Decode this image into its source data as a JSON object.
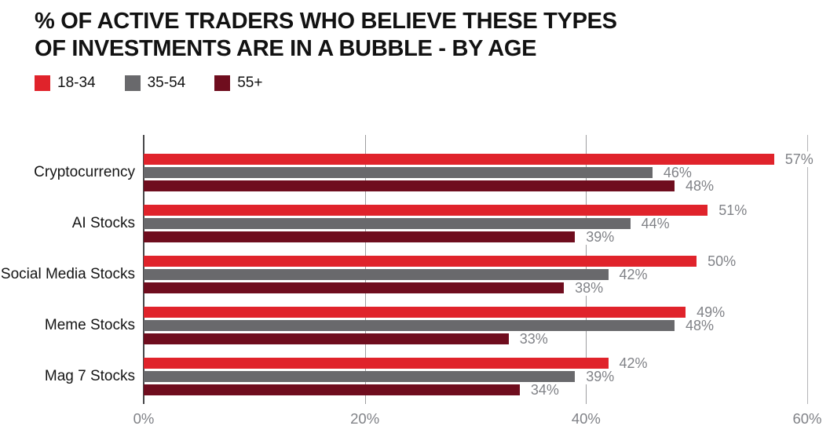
{
  "title": {
    "line1": "% OF ACTIVE TRADERS WHO BELIEVE THESE TYPES",
    "line2": "OF INVESTMENTS ARE IN A BUBBLE - BY AGE"
  },
  "legend": {
    "items": [
      {
        "label": "18-34",
        "color": "#e0232b"
      },
      {
        "label": "35-54",
        "color": "#69696c"
      },
      {
        "label": "55+",
        "color": "#6f0d1e"
      }
    ]
  },
  "chart_data": {
    "type": "bar",
    "orientation": "horizontal",
    "title": "% OF ACTIVE TRADERS WHO BELIEVE THESE TYPES OF INVESTMENTS ARE IN A BUBBLE - BY AGE",
    "categories": [
      "Cryptocurrency",
      "AI Stocks",
      "Social Media Stocks",
      "Meme Stocks",
      "Mag 7 Stocks"
    ],
    "series": [
      {
        "name": "18-34",
        "color": "#e0232b",
        "values": [
          57,
          51,
          50,
          49,
          42
        ]
      },
      {
        "name": "35-54",
        "color": "#69696c",
        "values": [
          46,
          44,
          42,
          48,
          39
        ]
      },
      {
        "name": "55+",
        "color": "#6f0d1e",
        "values": [
          48,
          39,
          38,
          33,
          34
        ]
      }
    ],
    "value_suffix": "%",
    "xlim": [
      0,
      60
    ],
    "x_ticks": [
      {
        "label": "0%",
        "value": 0
      },
      {
        "label": "20%",
        "value": 20
      },
      {
        "label": "40%",
        "value": 40
      },
      {
        "label": "60%",
        "value": 60
      }
    ],
    "grid": true,
    "legend_position": "top-left",
    "value_labels": "outside-end"
  },
  "colors": {
    "axis_line": "#48484a",
    "grid_line": "#9e9ea0",
    "grid_line_right": "#b5b5b7",
    "value_label": "#808287",
    "tick_label": "#808287",
    "category_label": "#151515",
    "title": "#121212"
  }
}
